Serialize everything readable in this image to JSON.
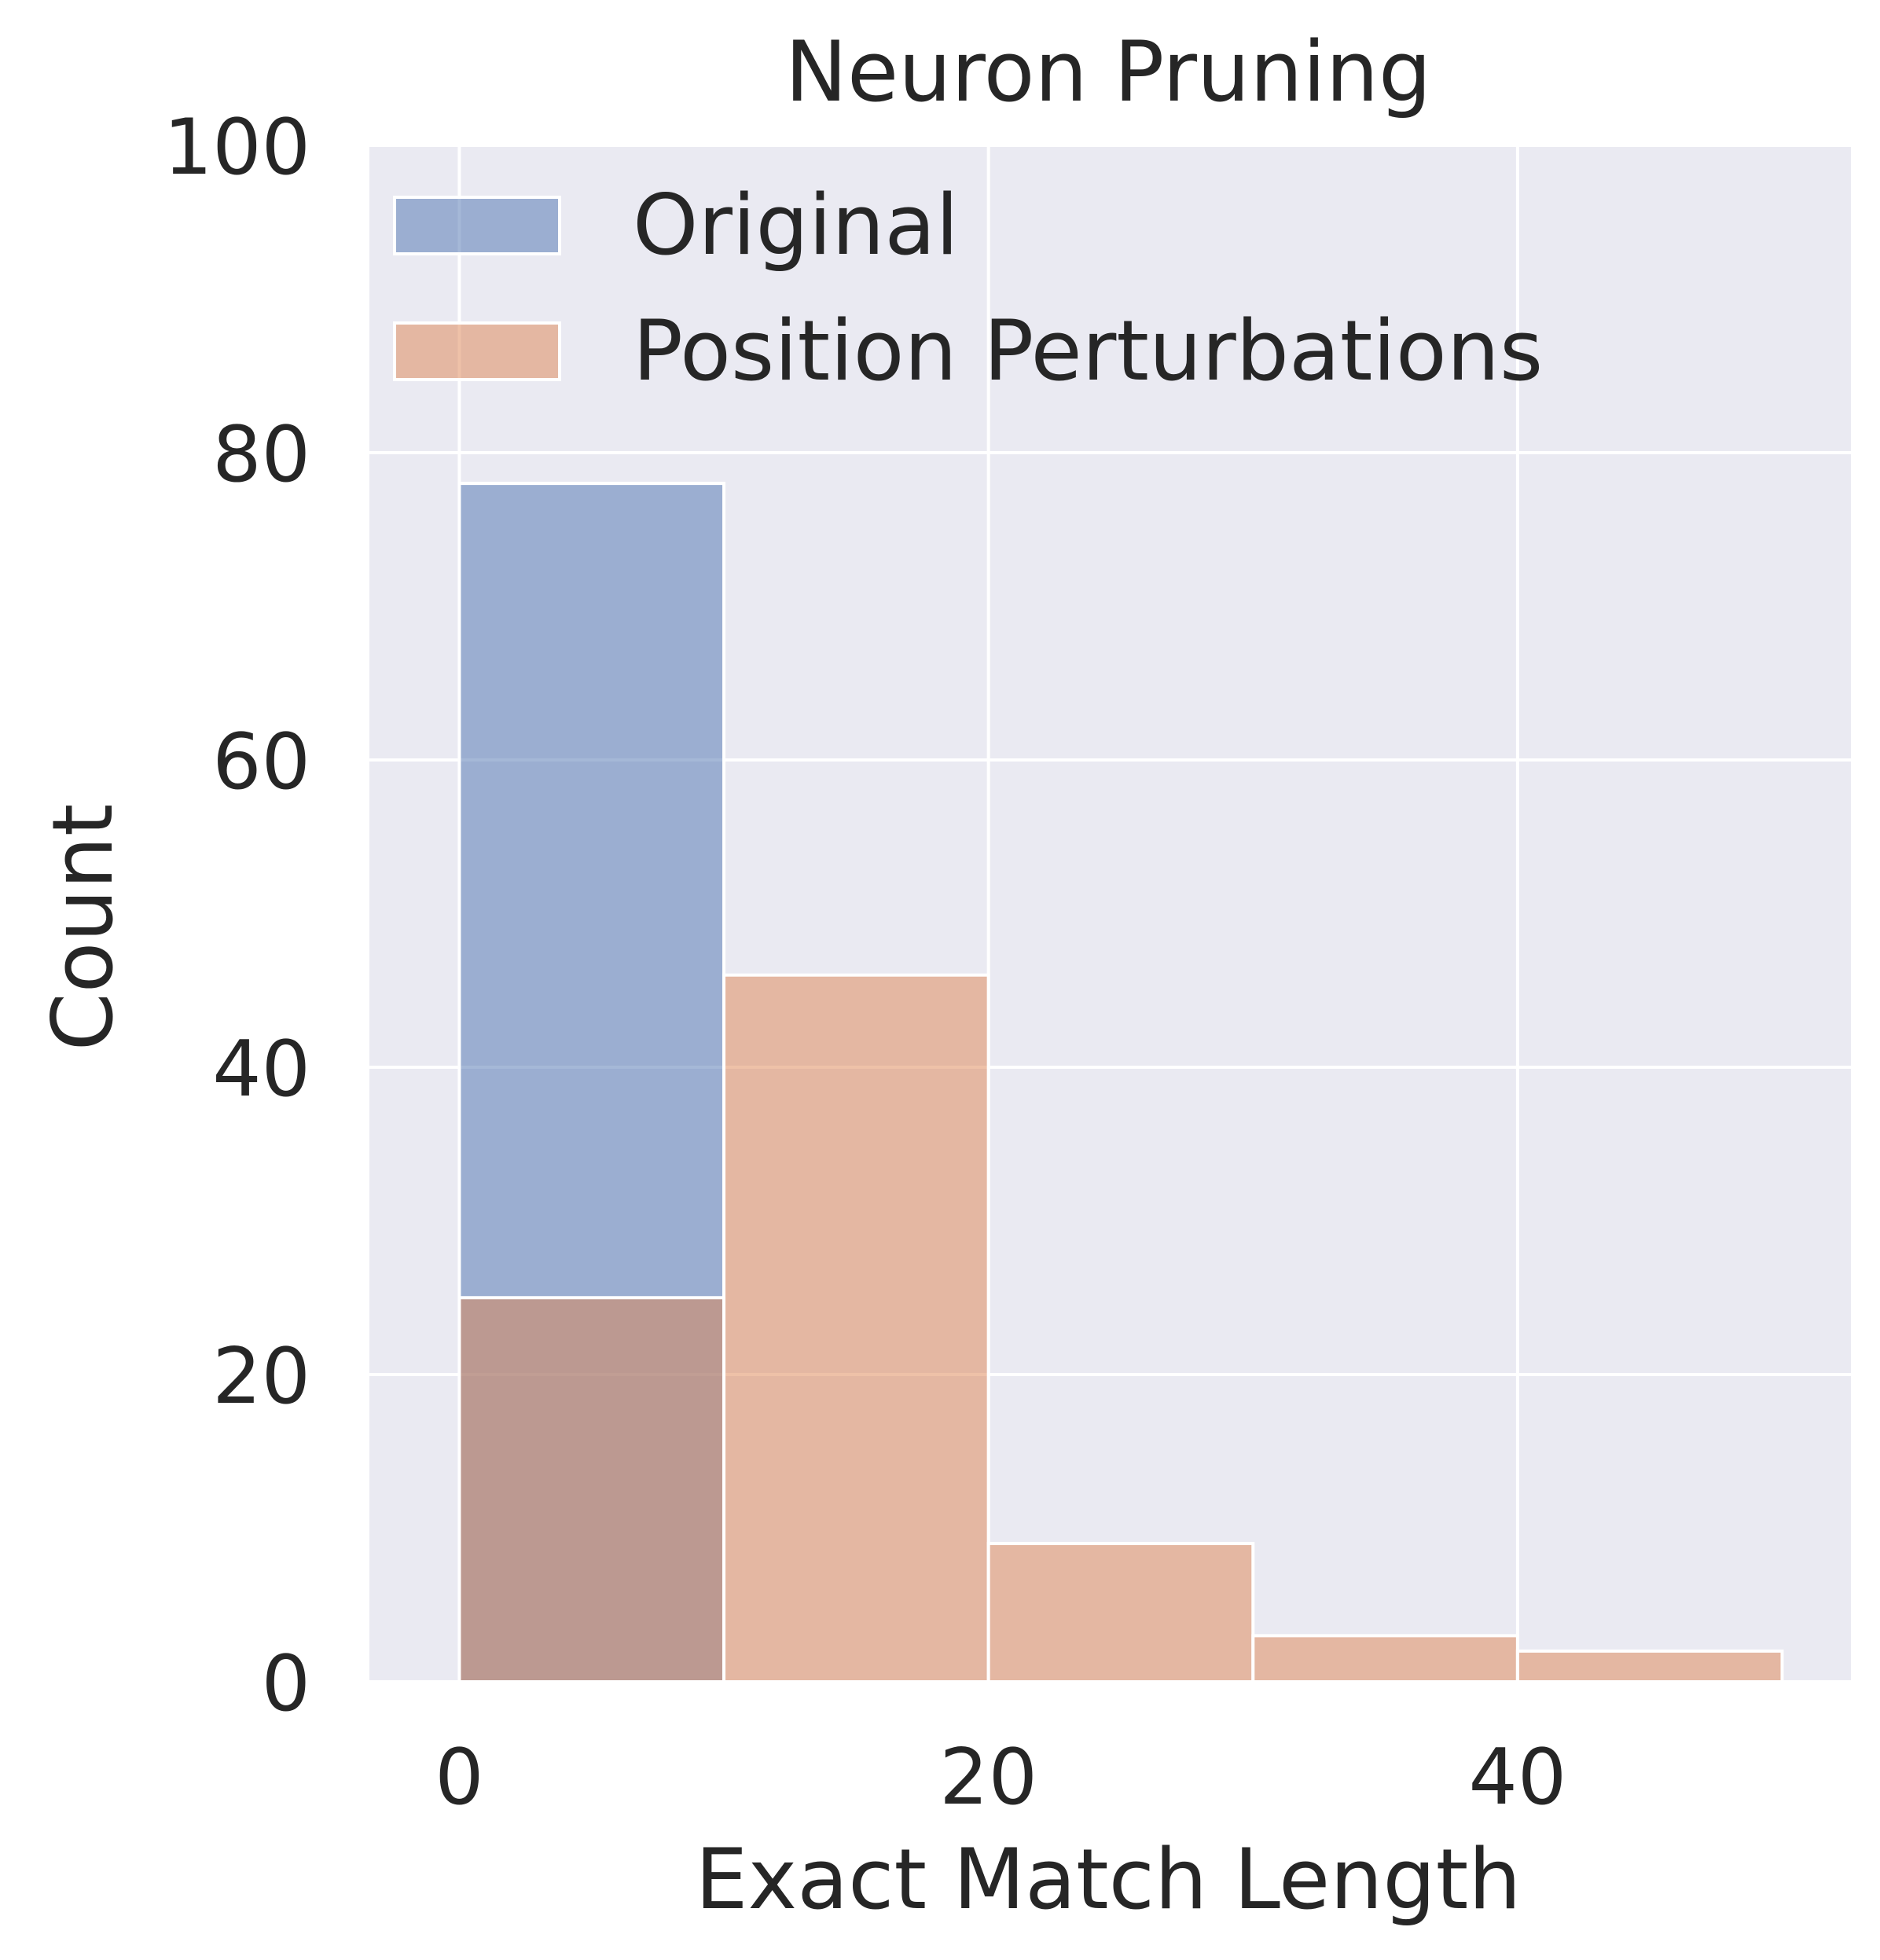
{
  "chart_data": {
    "type": "bar",
    "title": "Neuron Pruning",
    "xlabel": "Exact Match Length",
    "ylabel": "Count",
    "xlim": [
      -3.4,
      52.6
    ],
    "ylim": [
      0,
      100
    ],
    "xticks": [
      0,
      20,
      40
    ],
    "yticks": [
      0,
      20,
      40,
      60,
      80,
      100
    ],
    "grid": true,
    "legend_position": "top-left",
    "bins": [
      [
        0,
        10
      ],
      [
        10,
        20
      ],
      [
        20,
        30
      ],
      [
        30,
        40
      ],
      [
        40,
        50
      ]
    ],
    "series": [
      {
        "name": "Original",
        "color": "#4c72b0",
        "alpha": 0.5,
        "values": [
          78,
          0,
          0,
          0,
          0
        ]
      },
      {
        "name": "Position Perturbations",
        "color": "#dd8452",
        "alpha": 0.5,
        "values": [
          25,
          46,
          9,
          3,
          2
        ]
      }
    ],
    "overlap_color": "#9793a8"
  },
  "colors": {
    "plot_background": "#eaeaf2",
    "grid": "#ffffff",
    "text": "#262626"
  }
}
